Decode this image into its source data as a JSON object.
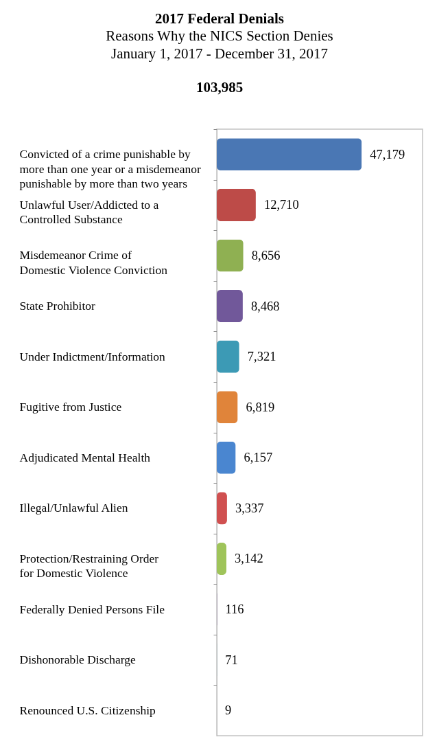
{
  "chart_data": {
    "type": "bar",
    "orientation": "horizontal",
    "title": "2017 Federal Denials",
    "subtitle": "Reasons Why the NICS Section Denies\nJanuary 1, 2017 - December 31, 2017",
    "annotations": [
      "103,985"
    ],
    "categories": [
      "Convicted of a crime punishable by\nmore than one year or a misdemeanor\npunishable by more than two years",
      "Unlawful User/Addicted to a\nControlled Substance",
      "Misdemeanor Crime of\nDomestic Violence Conviction",
      "State Prohibitor",
      "Under Indictment/Information",
      "Fugitive from Justice",
      "Adjudicated Mental Health",
      "Illegal/Unlawful Alien",
      "Protection/Restraining Order\nfor Domestic Violence",
      "Federally Denied Persons File",
      "Dishonorable Discharge",
      "Renounced U.S. Citizenship"
    ],
    "values": [
      47179,
      12710,
      8656,
      8468,
      7321,
      6819,
      6157,
      3337,
      3142,
      116,
      71,
      9
    ],
    "value_labels": [
      "47,179",
      "12,710",
      "8,656",
      "8,468",
      "7,321",
      "6,819",
      "6,157",
      "3,337",
      "3,142",
      "116",
      "71",
      "9"
    ],
    "colors": [
      "#4a77b4",
      "#bd4b48",
      "#8fb052",
      "#71589a",
      "#3c9ab5",
      "#e0843a",
      "#4a86d0",
      "#d05050",
      "#9fc45a",
      "#6a4e8c",
      "#3a8ea3",
      "#c8783a"
    ],
    "tick_labels": "y",
    "grid": false
  }
}
